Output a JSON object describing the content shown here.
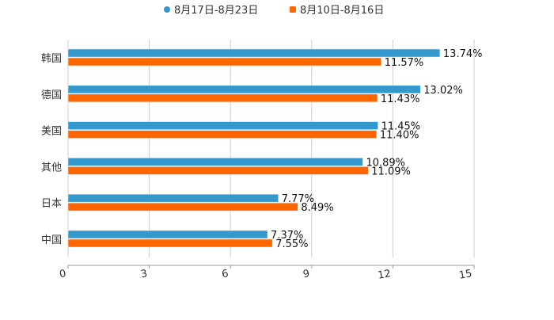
{
  "chart_data": {
    "type": "bar",
    "orientation": "horizontal",
    "categories": [
      "韩国",
      "德国",
      "美国",
      "其他",
      "日本",
      "中国"
    ],
    "series": [
      {
        "name": "8月17日-8月23日",
        "color": "#3399cc",
        "values": [
          13.74,
          13.02,
          11.45,
          10.89,
          7.77,
          7.37
        ],
        "labels": [
          "13.74%",
          "13.02%",
          "11.45%",
          "10.89%",
          "7.77%",
          "7.37%"
        ]
      },
      {
        "name": "8月10日-8月16日",
        "color": "#ff6600",
        "values": [
          11.57,
          11.43,
          11.4,
          11.09,
          8.49,
          7.55
        ],
        "labels": [
          "11.57%",
          "11.43%",
          "11.40%",
          "11.09%",
          "8.49%",
          "7.55%"
        ]
      }
    ],
    "xlim": [
      0,
      15
    ],
    "xticks": [
      "0",
      "3",
      "6",
      "9",
      "12",
      "15"
    ],
    "grid": true,
    "legend_position": "top-center",
    "title": "",
    "xlabel": "",
    "ylabel": ""
  }
}
